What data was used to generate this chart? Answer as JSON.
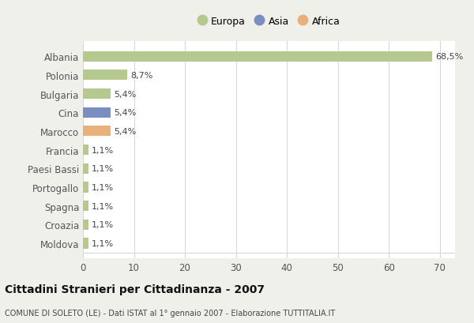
{
  "categories": [
    "Albania",
    "Polonia",
    "Bulgaria",
    "Cina",
    "Marocco",
    "Francia",
    "Paesi Bassi",
    "Portogallo",
    "Spagna",
    "Croazia",
    "Moldova"
  ],
  "values": [
    68.5,
    8.7,
    5.4,
    5.4,
    5.4,
    1.1,
    1.1,
    1.1,
    1.1,
    1.1,
    1.1
  ],
  "labels": [
    "68,5%",
    "8,7%",
    "5,4%",
    "5,4%",
    "5,4%",
    "1,1%",
    "1,1%",
    "1,1%",
    "1,1%",
    "1,1%",
    "1,1%"
  ],
  "colors": [
    "#b5c98e",
    "#b5c98e",
    "#b5c98e",
    "#7a8fc0",
    "#e8b07a",
    "#b5c98e",
    "#b5c98e",
    "#b5c98e",
    "#b5c98e",
    "#b5c98e",
    "#b5c98e"
  ],
  "legend": [
    {
      "label": "Europa",
      "color": "#b5c98e"
    },
    {
      "label": "Asia",
      "color": "#7a8fc0"
    },
    {
      "label": "Africa",
      "color": "#e8b07a"
    }
  ],
  "xlim": [
    0,
    73
  ],
  "xticks": [
    0,
    10,
    20,
    30,
    40,
    50,
    60,
    70
  ],
  "title": "Cittadini Stranieri per Cittadinanza - 2007",
  "subtitle": "COMUNE DI SOLETO (LE) - Dati ISTAT al 1° gennaio 2007 - Elaborazione TUTTITALIA.IT",
  "background_color": "#f0f0eb",
  "plot_background": "#ffffff",
  "grid_color": "#d8d8d8"
}
